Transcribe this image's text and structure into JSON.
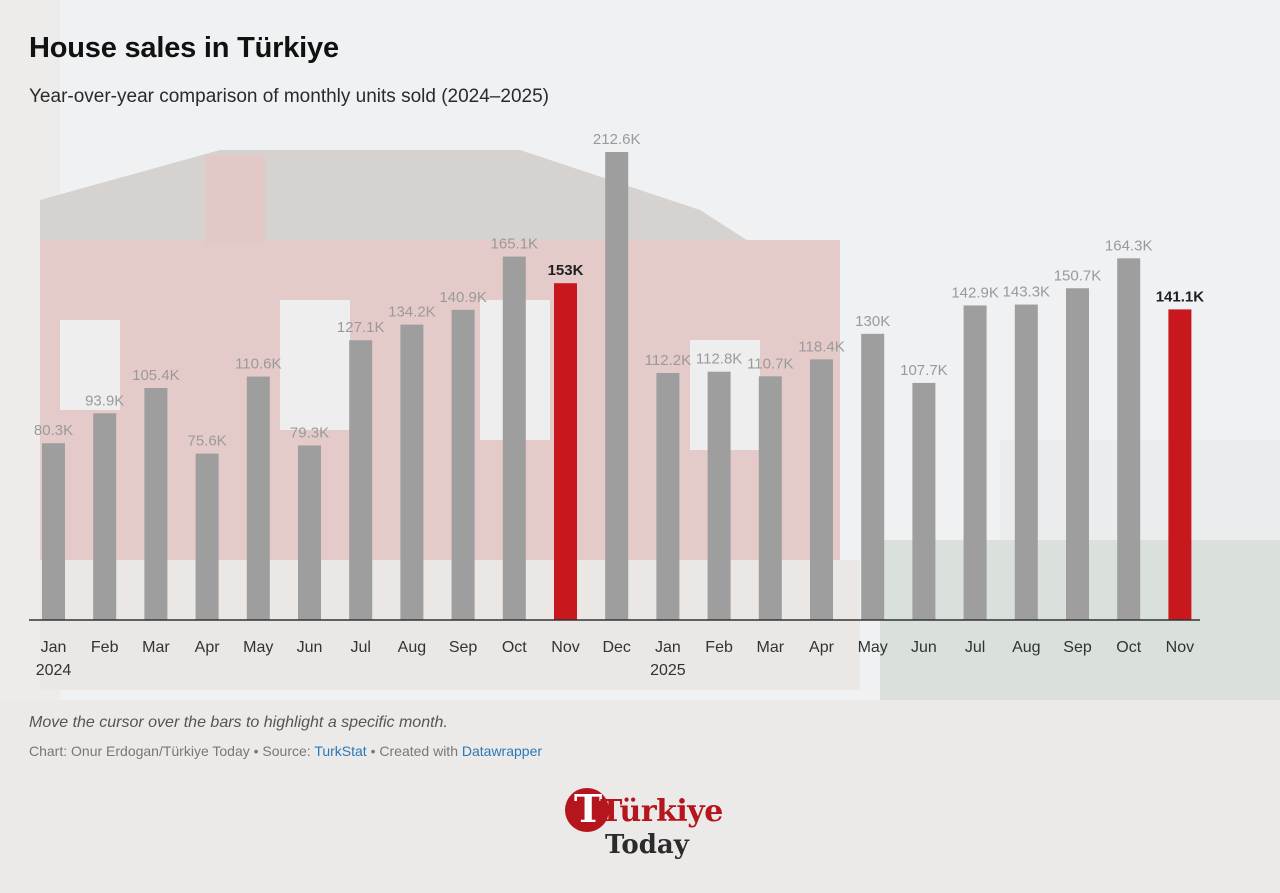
{
  "chart_data": {
    "type": "bar",
    "title": "House sales in Türkiye",
    "subtitle": "Year-over-year comparison of monthly units sold (2024–2025)",
    "categories": [
      "Jan",
      "Feb",
      "Mar",
      "Apr",
      "May",
      "Jun",
      "Jul",
      "Aug",
      "Sep",
      "Oct",
      "Nov",
      "Dec",
      "Jan",
      "Feb",
      "Mar",
      "Apr",
      "May",
      "Jun",
      "Jul",
      "Aug",
      "Sep",
      "Oct",
      "Nov"
    ],
    "year_labels": [
      "2024",
      "",
      "",
      "",
      "",
      "",
      "",
      "",
      "",
      "",
      "",
      "",
      "2025",
      "",
      "",
      "",
      "",
      "",
      "",
      "",
      "",
      "",
      ""
    ],
    "values": [
      80.3,
      93.9,
      105.4,
      75.6,
      110.6,
      79.3,
      127.1,
      134.2,
      140.9,
      165.1,
      153,
      212.6,
      112.2,
      112.8,
      110.7,
      118.4,
      130,
      107.7,
      142.9,
      143.3,
      150.7,
      164.3,
      141.1
    ],
    "value_labels": [
      "80.3K",
      "93.9K",
      "105.4K",
      "75.6K",
      "110.6K",
      "79.3K",
      "127.1K",
      "134.2K",
      "140.9K",
      "165.1K",
      "153K",
      "212.6K",
      "112.2K",
      "112.8K",
      "110.7K",
      "118.4K",
      "130K",
      "107.7K",
      "142.9K",
      "143.3K",
      "150.7K",
      "164.3K",
      "141.1K"
    ],
    "highlighted": [
      false,
      false,
      false,
      false,
      false,
      false,
      false,
      false,
      false,
      false,
      true,
      false,
      false,
      false,
      false,
      false,
      false,
      false,
      false,
      false,
      false,
      false,
      true
    ],
    "unit": "thousand units",
    "ylim": [
      0,
      212.6
    ],
    "grid": false,
    "legend": "none",
    "colors": {
      "bar": "#9e9e9e",
      "highlight": "#c8181e",
      "axis": "#333333"
    }
  },
  "note": "Move the cursor over the bars to highlight a specific month.",
  "credits": {
    "chart_prefix": "Chart: Onur Erdogan/Türkiye Today • Source: ",
    "source_link": "TurkStat",
    "created_prefix": " • Created with ",
    "tool_link": "Datawrapper"
  },
  "logo": {
    "top": "Türkiye",
    "bottom": "Today",
    "initial": "T"
  }
}
